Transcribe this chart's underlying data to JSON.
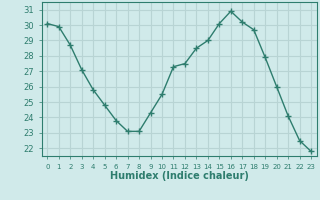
{
  "x": [
    0,
    1,
    2,
    3,
    4,
    5,
    6,
    7,
    8,
    9,
    10,
    11,
    12,
    13,
    14,
    15,
    16,
    17,
    18,
    19,
    20,
    21,
    22,
    23
  ],
  "y": [
    30.1,
    29.9,
    28.7,
    27.1,
    25.8,
    24.8,
    23.8,
    23.1,
    23.1,
    24.3,
    25.5,
    27.3,
    27.5,
    28.5,
    29.0,
    30.1,
    30.9,
    30.2,
    29.7,
    27.9,
    26.0,
    24.1,
    22.5,
    21.8
  ],
  "xlabel": "Humidex (Indice chaleur)",
  "ylim": [
    21.5,
    31.5
  ],
  "xlim": [
    -0.5,
    23.5
  ],
  "yticks": [
    22,
    23,
    24,
    25,
    26,
    27,
    28,
    29,
    30,
    31
  ],
  "xticks": [
    0,
    1,
    2,
    3,
    4,
    5,
    6,
    7,
    8,
    9,
    10,
    11,
    12,
    13,
    14,
    15,
    16,
    17,
    18,
    19,
    20,
    21,
    22,
    23
  ],
  "line_color": "#2e7d6e",
  "marker": "+",
  "bg_color": "#d0eaea",
  "grid_color": "#b8d4d4",
  "label_color": "#2e7d6e",
  "tick_color": "#2e7d6e",
  "axis_color": "#2e7d6e"
}
